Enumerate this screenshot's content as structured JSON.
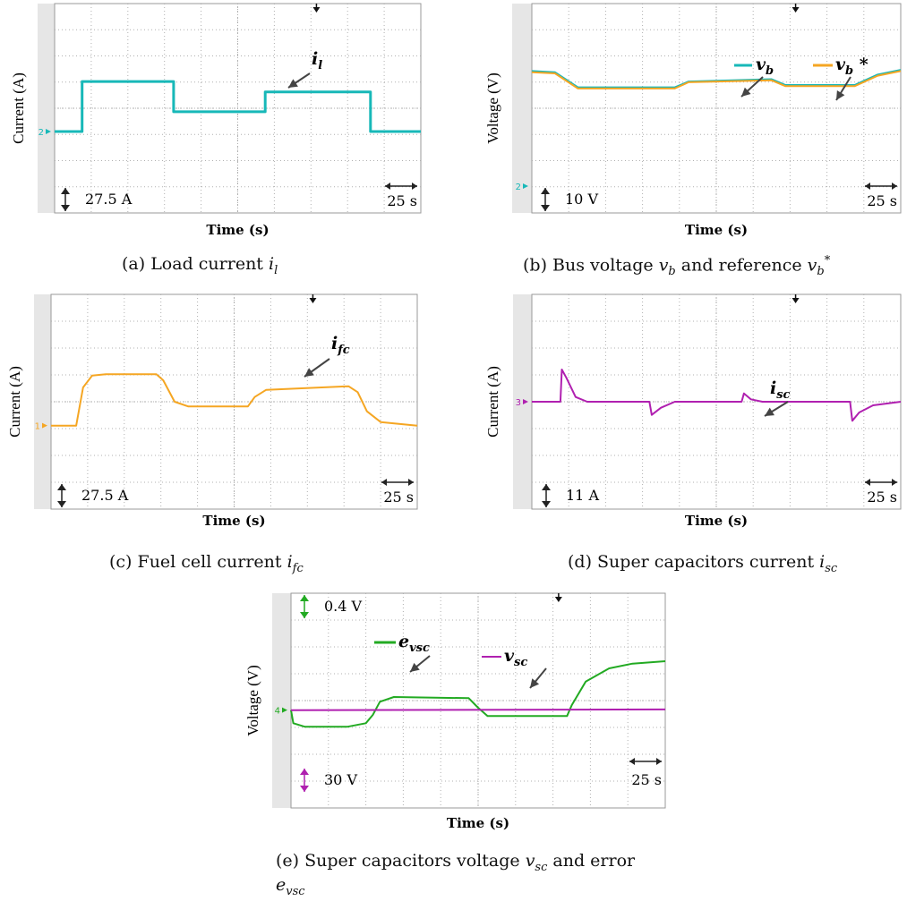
{
  "colors": {
    "cyan": "#17b8b8",
    "orange": "#f5a623",
    "magenta": "#b020b0",
    "green": "#22aa22",
    "grid": "#b0b0b0",
    "sidebar": "#e6e6e6",
    "arrow": "#444444"
  },
  "chart_data": [
    {
      "id": "a",
      "type": "line",
      "caption": "(a) Load current",
      "caption_math": {
        "base": "i",
        "sub": "l"
      },
      "ylabel": "Current (A)",
      "xlabel": "Time (s)",
      "y_scale": "27.5 A",
      "x_scale": "25 s",
      "channel_marker": "2",
      "series": [
        {
          "name": "i",
          "name_sub": "l",
          "color": "cyan",
          "points": [
            [
              0,
              0
            ],
            [
              0.6,
              0
            ],
            [
              0.6,
              2.15
            ],
            [
              2.6,
              2.15
            ],
            [
              2.6,
              0.85
            ],
            [
              4.6,
              0.85
            ],
            [
              4.6,
              1.7
            ],
            [
              6.9,
              1.7
            ],
            [
              6.9,
              0
            ],
            [
              8,
              0
            ]
          ]
        }
      ],
      "xlim": [
        0,
        8
      ],
      "ylim": [
        -3.5,
        5.5
      ]
    },
    {
      "id": "b",
      "type": "line",
      "caption": "(b) Bus voltage",
      "caption_math": {
        "base": "v",
        "sub": "b",
        "mid": " and reference ",
        "base2": "v",
        "sub2": "b",
        "sup2": "*"
      },
      "ylabel": "Voltage (V)",
      "xlabel": "Time (s)",
      "y_scale": "10 V",
      "x_scale": "25 s",
      "channel_marker": "2",
      "series": [
        {
          "name": "v",
          "name_sub": "b",
          "color": "cyan",
          "points": [
            [
              0,
              4.9
            ],
            [
              0.5,
              4.85
            ],
            [
              1.0,
              4.2
            ],
            [
              3.1,
              4.2
            ],
            [
              3.4,
              4.45
            ],
            [
              5.2,
              4.55
            ],
            [
              5.5,
              4.3
            ],
            [
              7.0,
              4.3
            ],
            [
              7.5,
              4.75
            ],
            [
              8,
              4.95
            ]
          ]
        },
        {
          "name": "v",
          "name_sub": "b",
          "name_sup": " *",
          "color": "orange",
          "points": [
            [
              0,
              4.85
            ],
            [
              0.5,
              4.8
            ],
            [
              1.0,
              4.15
            ],
            [
              3.1,
              4.15
            ],
            [
              3.4,
              4.42
            ],
            [
              5.2,
              4.5
            ],
            [
              5.5,
              4.25
            ],
            [
              7.0,
              4.25
            ],
            [
              7.5,
              4.7
            ],
            [
              8,
              4.9
            ]
          ]
        }
      ],
      "xlim": [
        0,
        8
      ],
      "ylim": [
        -1.2,
        7.8
      ]
    },
    {
      "id": "c",
      "type": "line",
      "caption": "(c) Fuel cell current",
      "caption_math": {
        "base": "i",
        "sub": "fc"
      },
      "ylabel": "Current (A)",
      "xlabel": "Time (s)",
      "y_scale": "27.5 A",
      "x_scale": "25 s",
      "channel_marker": "1",
      "series": [
        {
          "name": "i",
          "name_sub": "fc",
          "color": "orange",
          "points": [
            [
              0,
              0
            ],
            [
              0.55,
              0
            ],
            [
              0.7,
              1.6
            ],
            [
              0.9,
              2.1
            ],
            [
              1.2,
              2.15
            ],
            [
              2.3,
              2.15
            ],
            [
              2.45,
              1.9
            ],
            [
              2.7,
              1.0
            ],
            [
              3.0,
              0.8
            ],
            [
              4.3,
              0.8
            ],
            [
              4.45,
              1.2
            ],
            [
              4.7,
              1.5
            ],
            [
              6.5,
              1.65
            ],
            [
              6.7,
              1.4
            ],
            [
              6.9,
              0.6
            ],
            [
              7.2,
              0.15
            ],
            [
              8,
              0
            ]
          ]
        }
      ],
      "xlim": [
        0,
        8
      ],
      "ylim": [
        -3.5,
        5.5
      ]
    },
    {
      "id": "d",
      "type": "line",
      "caption": "(d) Super capacitors current",
      "caption_math": {
        "base": "i",
        "sub": "sc"
      },
      "ylabel": "Current (A)",
      "xlabel": "Time (s)",
      "y_scale": "11 A",
      "x_scale": "25 s",
      "channel_marker": "3",
      "series": [
        {
          "name": "i",
          "name_sub": "sc",
          "color": "magenta",
          "points": [
            [
              0,
              0
            ],
            [
              0.62,
              0
            ],
            [
              0.65,
              1.35
            ],
            [
              0.75,
              1.0
            ],
            [
              0.95,
              0.2
            ],
            [
              1.2,
              0
            ],
            [
              2.55,
              0
            ],
            [
              2.6,
              -0.55
            ],
            [
              2.8,
              -0.25
            ],
            [
              3.1,
              0
            ],
            [
              4.55,
              0
            ],
            [
              4.6,
              0.35
            ],
            [
              4.75,
              0.1
            ],
            [
              5.0,
              0
            ],
            [
              6.9,
              0
            ],
            [
              6.95,
              -0.8
            ],
            [
              7.1,
              -0.45
            ],
            [
              7.4,
              -0.15
            ],
            [
              8,
              0
            ]
          ]
        }
      ],
      "xlim": [
        0,
        8
      ],
      "ylim": [
        -4.5,
        4.5
      ]
    },
    {
      "id": "e",
      "type": "line",
      "caption_line1": "(e) Super capacitors voltage",
      "caption_line1_math": {
        "base": "v",
        "sub": "sc",
        "tail": " and error"
      },
      "caption_line2_math": {
        "base": "e",
        "sub": "vsc"
      },
      "ylabel": "Voltage (V)",
      "xlabel": "Time (s)",
      "y_scale_green": "0.4 V",
      "y_scale_magenta": "30 V",
      "x_scale": "25 s",
      "channel_marker": "4",
      "series": [
        {
          "name": "e",
          "name_sub": "vsc",
          "color": "green",
          "points": [
            [
              0,
              0
            ],
            [
              0.05,
              -0.55
            ],
            [
              0.3,
              -0.7
            ],
            [
              1.2,
              -0.7
            ],
            [
              1.6,
              -0.55
            ],
            [
              1.75,
              -0.2
            ],
            [
              1.9,
              0.35
            ],
            [
              2.2,
              0.55
            ],
            [
              3.8,
              0.5
            ],
            [
              4.0,
              0.1
            ],
            [
              4.2,
              -0.25
            ],
            [
              5.9,
              -0.25
            ],
            [
              6.0,
              0.2
            ],
            [
              6.3,
              1.2
            ],
            [
              6.8,
              1.75
            ],
            [
              7.3,
              1.95
            ],
            [
              8,
              2.05
            ]
          ]
        },
        {
          "name": "v",
          "name_sub": "sc",
          "color": "magenta",
          "points": [
            [
              0,
              0
            ],
            [
              8,
              0.03
            ]
          ]
        }
      ],
      "xlim": [
        0,
        8
      ],
      "ylim": [
        -4.1,
        4.9
      ]
    }
  ]
}
